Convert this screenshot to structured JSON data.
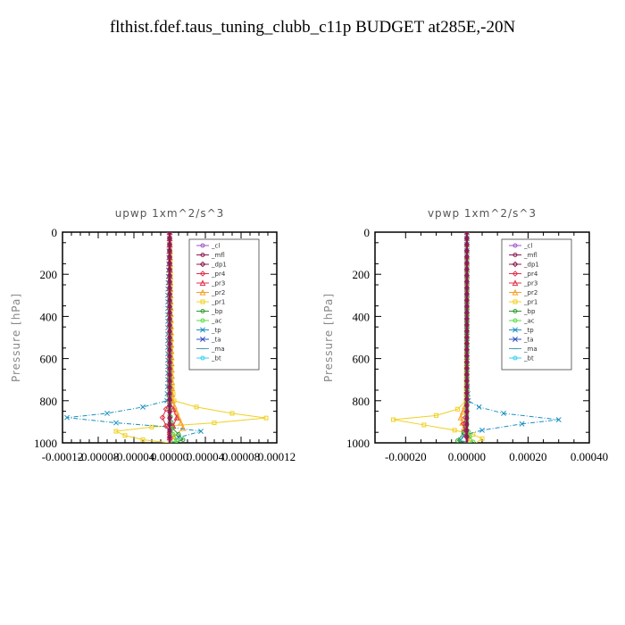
{
  "title": "flthist.fdef.taus_tuning_clubb_c11p  BUDGET at285E,-20N",
  "legend": [
    {
      "name": "_cl",
      "color": "#9a54c8",
      "marker": "circle"
    },
    {
      "name": "_mfl",
      "color": "#8b1a50",
      "marker": "circle"
    },
    {
      "name": "_dp1",
      "color": "#8b1a50",
      "marker": "diamond"
    },
    {
      "name": "_pr4",
      "color": "#e0304a",
      "marker": "diamond"
    },
    {
      "name": "_pr3",
      "color": "#e0304a",
      "marker": "triangle"
    },
    {
      "name": "_pr2",
      "color": "#f5a020",
      "marker": "triangle"
    },
    {
      "name": "_pr1",
      "color": "#f0d020",
      "marker": "square"
    },
    {
      "name": "_bp",
      "color": "#2a9a2a",
      "marker": "circle"
    },
    {
      "name": "_ac",
      "color": "#55dd44",
      "marker": "circle"
    },
    {
      "name": "_tp",
      "color": "#1a90c0",
      "marker": "cross"
    },
    {
      "name": "_ta",
      "color": "#3050c0",
      "marker": "cross"
    },
    {
      "name": "_ma",
      "color": "#4aa0b0",
      "marker": "dash"
    },
    {
      "name": "_bt",
      "color": "#30d0f0",
      "marker": "circle"
    }
  ],
  "chart_data": [
    {
      "type": "line",
      "title": "upwp   1xm^2/s^3",
      "ylabel": "Pressure [hPa]",
      "xlim": [
        -0.00012,
        0.00012
      ],
      "ylim": [
        1000,
        0
      ],
      "xticks": [
        "-0.00012",
        "-0.00008",
        "-0.00004",
        "0.00000",
        "0.00004",
        "0.00008",
        "0.00012"
      ],
      "yticks": [
        "0",
        "200",
        "400",
        "600",
        "800",
        "1000"
      ],
      "series": [
        {
          "key": "pr1",
          "color": "#f0d020",
          "points": [
            [
              0,
              0
            ],
            [
              1e-06,
              200
            ],
            [
              1e-06,
              400
            ],
            [
              2e-06,
              700
            ],
            [
              5e-06,
              800
            ],
            [
              3e-05,
              830
            ],
            [
              7e-05,
              860
            ],
            [
              0.000108,
              882
            ],
            [
              5e-05,
              905
            ],
            [
              -2e-05,
              925
            ],
            [
              -6e-05,
              945
            ],
            [
              -5e-05,
              965
            ],
            [
              -3e-05,
              985
            ],
            [
              0,
              1000
            ]
          ]
        },
        {
          "key": "pr2",
          "color": "#f5a020",
          "points": [
            [
              0,
              0
            ],
            [
              1e-06,
              300
            ],
            [
              3e-06,
              800
            ],
            [
              1e-05,
              880
            ],
            [
              1.5e-05,
              930
            ],
            [
              5e-06,
              970
            ],
            [
              0,
              1000
            ]
          ]
        },
        {
          "key": "tp",
          "color": "#1a90c0",
          "points": [
            [
              0,
              0
            ],
            [
              -2e-06,
              300
            ],
            [
              -2e-06,
              700
            ],
            [
              -3e-06,
              800
            ],
            [
              -3e-05,
              830
            ],
            [
              -7e-05,
              860
            ],
            [
              -0.000115,
              880
            ],
            [
              -6e-05,
              905
            ],
            [
              0,
              925
            ],
            [
              3.5e-05,
              945
            ],
            [
              1e-05,
              975
            ],
            [
              0,
              1000
            ]
          ]
        },
        {
          "key": "bp",
          "color": "#2a9a2a",
          "points": [
            [
              0,
              0
            ],
            [
              0,
              850
            ],
            [
              3e-06,
              930
            ],
            [
              1e-05,
              960
            ],
            [
              1.5e-05,
              985
            ],
            [
              5e-06,
              1000
            ]
          ]
        },
        {
          "key": "pr4",
          "color": "#e0304a",
          "points": [
            [
              0,
              0
            ],
            [
              0,
              800
            ],
            [
              -4e-06,
              840
            ],
            [
              -8e-06,
              880
            ],
            [
              -4e-06,
              920
            ],
            [
              0,
              950
            ],
            [
              0,
              1000
            ]
          ]
        },
        {
          "key": "pr3",
          "color": "#e0304a",
          "points": [
            [
              0,
              0
            ],
            [
              0,
              800
            ],
            [
              4e-06,
              840
            ],
            [
              8e-06,
              880
            ],
            [
              4e-06,
              920
            ],
            [
              0,
              950
            ],
            [
              0,
              1000
            ]
          ]
        },
        {
          "key": "ac",
          "color": "#55dd44",
          "points": [
            [
              0,
              0
            ],
            [
              0,
              900
            ],
            [
              4e-06,
              960
            ],
            [
              8e-06,
              990
            ],
            [
              0,
              1000
            ]
          ]
        },
        {
          "key": "cl",
          "color": "#9a54c8",
          "points": [
            [
              0,
              0
            ],
            [
              0,
              1000
            ]
          ]
        },
        {
          "key": "mfl",
          "color": "#8b1a50",
          "points": [
            [
              0,
              0
            ],
            [
              0,
              1000
            ]
          ]
        }
      ]
    },
    {
      "type": "line",
      "title": "vpwp   1xm^2/s^3",
      "ylabel": "Pressure [hPa]",
      "xlim": [
        -0.0003,
        0.0004
      ],
      "ylim": [
        1000,
        0
      ],
      "xticks": [
        "-0.00020",
        "0.00000",
        "0.00020",
        "0.00040"
      ],
      "yticks": [
        "0",
        "200",
        "400",
        "600",
        "800",
        "1000"
      ],
      "series": [
        {
          "key": "pr1",
          "color": "#f0d020",
          "points": [
            [
              0,
              0
            ],
            [
              0,
              400
            ],
            [
              -3e-06,
              800
            ],
            [
              -3e-05,
              840
            ],
            [
              -0.0001,
              870
            ],
            [
              -0.00024,
              890
            ],
            [
              -0.00014,
              915
            ],
            [
              -4e-05,
              940
            ],
            [
              2e-05,
              960
            ],
            [
              5e-05,
              980
            ],
            [
              3e-05,
              1000
            ]
          ]
        },
        {
          "key": "pr2",
          "color": "#f5a020",
          "points": [
            [
              0,
              0
            ],
            [
              0,
              800
            ],
            [
              -2e-05,
              880
            ],
            [
              -1e-05,
              930
            ],
            [
              1e-05,
              980
            ],
            [
              0,
              1000
            ]
          ]
        },
        {
          "key": "tp",
          "color": "#1a90c0",
          "points": [
            [
              0,
              0
            ],
            [
              0,
              700
            ],
            [
              5e-06,
              800
            ],
            [
              4e-05,
              830
            ],
            [
              0.00012,
              860
            ],
            [
              0.0003,
              890
            ],
            [
              0.00018,
              910
            ],
            [
              5e-05,
              940
            ],
            [
              -1e-05,
              965
            ],
            [
              -2e-05,
              985
            ],
            [
              0,
              1000
            ]
          ]
        },
        {
          "key": "bp",
          "color": "#2a9a2a",
          "points": [
            [
              0,
              0
            ],
            [
              0,
              900
            ],
            [
              -1e-05,
              950
            ],
            [
              -3e-05,
              990
            ],
            [
              0,
              1000
            ]
          ]
        },
        {
          "key": "pr4",
          "color": "#e0304a",
          "points": [
            [
              0,
              0
            ],
            [
              0,
              850
            ],
            [
              -5e-06,
              880
            ],
            [
              -1e-05,
              910
            ],
            [
              -5e-06,
              940
            ],
            [
              0,
              1000
            ]
          ]
        },
        {
          "key": "ac",
          "color": "#55dd44",
          "points": [
            [
              0,
              0
            ],
            [
              0,
              920
            ],
            [
              1e-05,
              970
            ],
            [
              2e-05,
              995
            ],
            [
              0,
              1000
            ]
          ]
        },
        {
          "key": "cl",
          "color": "#9a54c8",
          "points": [
            [
              0,
              0
            ],
            [
              0,
              1000
            ]
          ]
        },
        {
          "key": "mfl",
          "color": "#8b1a50",
          "points": [
            [
              0,
              0
            ],
            [
              0,
              1000
            ]
          ]
        }
      ]
    }
  ]
}
